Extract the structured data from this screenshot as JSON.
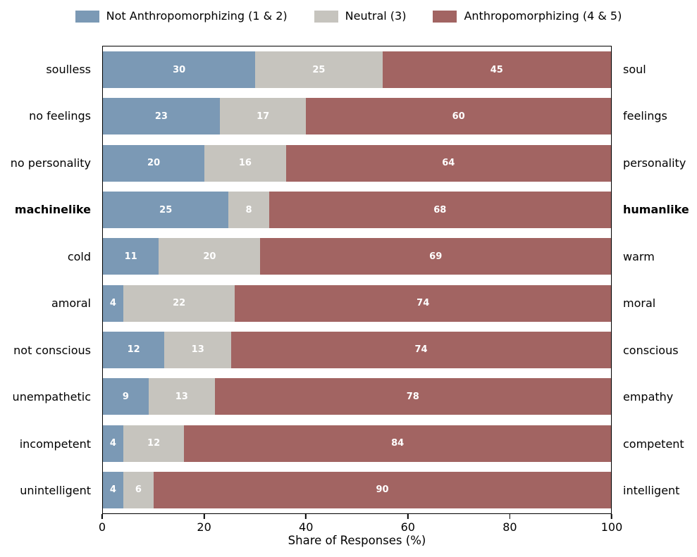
{
  "chart_data": {
    "type": "bar",
    "stacked": true,
    "orientation": "horizontal",
    "title": "",
    "xlabel": "Share of Responses (%)",
    "ylabel": "",
    "xlim": [
      0,
      100
    ],
    "x_ticks": [
      "0",
      "20",
      "40",
      "60",
      "80",
      "100"
    ],
    "grid": false,
    "legend_position": "top-center",
    "series": [
      {
        "name": "Not Anthropomorphizing (1 & 2)",
        "color": "#7b99b5"
      },
      {
        "name": "Neutral (3)",
        "color": "#c6c4be"
      },
      {
        "name": "Anthropomorphizing (4 & 5)",
        "color": "#a26462"
      }
    ],
    "rows": [
      {
        "left": "soulless",
        "right": "soul",
        "bold": false,
        "values": [
          30,
          25,
          45
        ]
      },
      {
        "left": "no feelings",
        "right": "feelings",
        "bold": false,
        "values": [
          23,
          17,
          60
        ]
      },
      {
        "left": "no personality",
        "right": "personality",
        "bold": false,
        "values": [
          20,
          16,
          64
        ]
      },
      {
        "left": "machinelike",
        "right": "humanlike",
        "bold": true,
        "values": [
          25,
          8,
          68
        ]
      },
      {
        "left": "cold",
        "right": "warm",
        "bold": false,
        "values": [
          11,
          20,
          69
        ]
      },
      {
        "left": "amoral",
        "right": "moral",
        "bold": false,
        "values": [
          4,
          22,
          74
        ]
      },
      {
        "left": "not conscious",
        "right": "conscious",
        "bold": false,
        "values": [
          12,
          13,
          74
        ]
      },
      {
        "left": "unempathetic",
        "right": "empathy",
        "bold": false,
        "values": [
          9,
          13,
          78
        ]
      },
      {
        "left": "incompetent",
        "right": "competent",
        "bold": false,
        "values": [
          4,
          12,
          84
        ]
      },
      {
        "left": "unintelligent",
        "right": "intelligent",
        "bold": false,
        "values": [
          4,
          6,
          90
        ]
      }
    ],
    "value_label_color": "#ffffff",
    "axis_color": "#000000",
    "background_color": "#ffffff"
  }
}
